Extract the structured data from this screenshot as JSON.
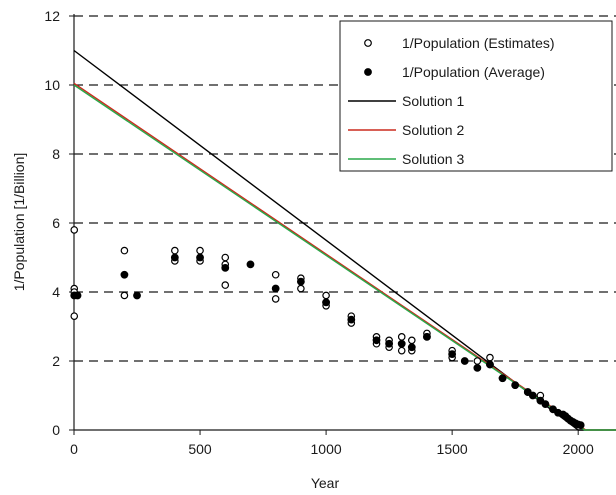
{
  "chart_data": {
    "type": "scatter",
    "title": "",
    "xlabel": "Year",
    "ylabel": "1/Population [1/Billion]",
    "xlim": [
      0,
      2150
    ],
    "ylim": [
      0,
      12
    ],
    "x_ticks": [
      0,
      500,
      1000,
      1500,
      2000
    ],
    "x_tick_labels": [
      "0",
      "500",
      "1000",
      "1500",
      "2000"
    ],
    "y_ticks": [
      0,
      2,
      4,
      6,
      8,
      10,
      12
    ],
    "y_tick_labels": [
      "0",
      "2",
      "4",
      "6",
      "8",
      "10",
      "12"
    ],
    "grid": "horizontal dashed",
    "legend_position": "top-right",
    "series": [
      {
        "name": "1/Population (Estimates)",
        "kind": "scatter",
        "marker": "open-circle",
        "color": "#000000",
        "x": [
          1,
          1,
          1,
          1,
          200,
          200,
          400,
          400,
          500,
          500,
          600,
          600,
          600,
          800,
          800,
          900,
          900,
          1000,
          1000,
          1000,
          1100,
          1100,
          1200,
          1200,
          1250,
          1250,
          1300,
          1300,
          1300,
          1340,
          1340,
          1400,
          1400,
          1500,
          1500,
          1600,
          1650,
          1650,
          1700,
          1750,
          1800,
          1850
        ],
        "y": [
          5.8,
          3.3,
          4.1,
          4.0,
          5.2,
          3.9,
          5.2,
          4.9,
          5.2,
          4.9,
          5.0,
          4.8,
          4.2,
          4.5,
          3.8,
          4.4,
          4.1,
          3.9,
          3.7,
          3.6,
          3.3,
          3.1,
          2.7,
          2.5,
          2.6,
          2.4,
          2.7,
          2.5,
          2.3,
          2.6,
          2.3,
          2.8,
          2.7,
          2.3,
          2.1,
          2.0,
          2.1,
          1.9,
          1.5,
          1.3,
          1.1,
          1.0
        ]
      },
      {
        "name": "1/Population (Average)",
        "kind": "scatter",
        "marker": "filled-circle",
        "color": "#000000",
        "x": [
          1,
          14,
          200,
          250,
          400,
          500,
          600,
          700,
          800,
          900,
          1000,
          1100,
          1200,
          1250,
          1300,
          1340,
          1400,
          1500,
          1550,
          1600,
          1650,
          1700,
          1750,
          1800,
          1820,
          1850,
          1870,
          1900,
          1920,
          1940,
          1950,
          1960,
          1970,
          1980,
          1990,
          2000,
          2010
        ],
        "y": [
          3.9,
          3.9,
          4.5,
          3.9,
          5.0,
          5.0,
          4.7,
          4.8,
          4.1,
          4.3,
          3.7,
          3.2,
          2.6,
          2.5,
          2.5,
          2.4,
          2.7,
          2.2,
          2.0,
          1.8,
          1.9,
          1.5,
          1.3,
          1.1,
          1.0,
          0.85,
          0.75,
          0.6,
          0.5,
          0.45,
          0.4,
          0.33,
          0.27,
          0.23,
          0.19,
          0.16,
          0.14
        ]
      },
      {
        "name": "Solution 1",
        "kind": "line",
        "color": "#000000",
        "x": [
          0,
          2000,
          2150
        ],
        "y": [
          11.0,
          0.0,
          0.0
        ]
      },
      {
        "name": "Solution 2",
        "kind": "line",
        "color": "#cc2b1f",
        "x": [
          0,
          2030,
          2150
        ],
        "y": [
          10.05,
          0.0,
          0.0
        ]
      },
      {
        "name": "Solution 3",
        "kind": "line",
        "color": "#2aa84a",
        "x": [
          0,
          2025,
          2150
        ],
        "y": [
          10.0,
          0.0,
          0.0
        ]
      }
    ]
  }
}
